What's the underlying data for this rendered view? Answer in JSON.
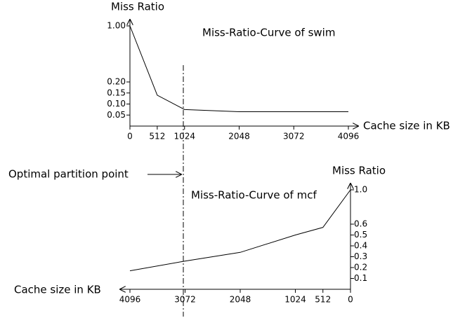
{
  "chart_data": [
    {
      "type": "line",
      "title": "Miss-Ratio-Curve of swim",
      "x_label": "Cache size in KB",
      "y_label": "Miss Ratio",
      "x": [
        0,
        512,
        1024,
        2048,
        4096
      ],
      "values": [
        1.0,
        0.14,
        0.075,
        0.065,
        0.065
      ],
      "color": "#000000",
      "xlim": [
        0,
        4096
      ],
      "xticks": [
        0,
        512,
        1024,
        2048,
        3072,
        4096
      ],
      "ylim": [
        0,
        1.0
      ],
      "yticks": [
        {
          "value": 0.05,
          "label": "0.05"
        },
        {
          "value": 0.1,
          "label": "0.10"
        },
        {
          "value": 0.15,
          "label": "0.15"
        },
        {
          "value": 0.2,
          "label": "0.20"
        },
        {
          "value": 1.0,
          "label": "1.00"
        }
      ]
    },
    {
      "type": "line",
      "title": "Miss-Ratio-Curve of mcf",
      "x_label": "Cache size in KB",
      "y_label": "Miss Ratio",
      "x": [
        4096,
        3072,
        2048,
        1024,
        512,
        0
      ],
      "values": [
        0.17,
        0.26,
        0.34,
        0.5,
        0.57,
        1.0
      ],
      "color": "#000000",
      "xlim": [
        0,
        4096
      ],
      "x_reversed": true,
      "y_axis_side": "right",
      "xticks": [
        0,
        512,
        1024,
        2048,
        3072,
        4096
      ],
      "ylim": [
        0,
        1.0
      ],
      "yticks": [
        0.1,
        0.2,
        0.3,
        0.4,
        0.5,
        0.6,
        {
          "value": 1.0,
          "label": "1.0"
        }
      ]
    }
  ],
  "annotation": "Optimal partition point"
}
